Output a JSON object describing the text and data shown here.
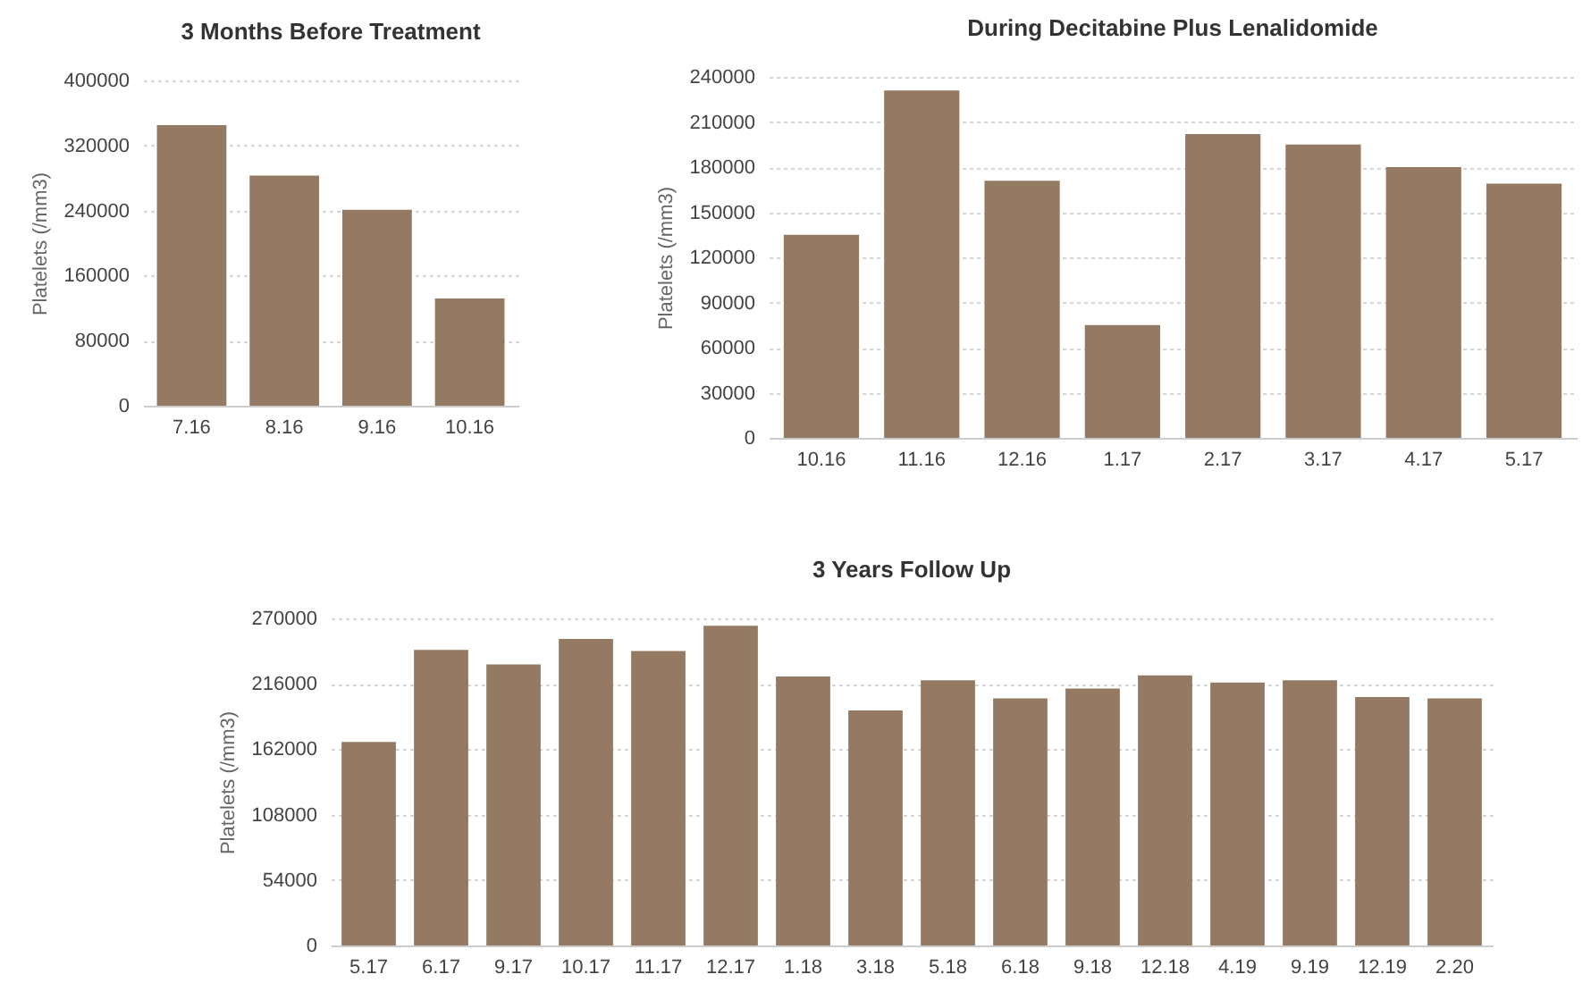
{
  "chart_data": [
    {
      "type": "bar",
      "title": "3 Months Before Treatment",
      "ylabel": "Platelets (/mm3)",
      "categories": [
        "7.16",
        "8.16",
        "9.16",
        "10.16"
      ],
      "values": [
        345000,
        283000,
        241000,
        132000
      ],
      "color": "#947a63",
      "ylim": [
        0,
        400000
      ],
      "yticks": [
        0,
        80000,
        160000,
        240000,
        320000,
        400000
      ],
      "grid": "y"
    },
    {
      "type": "bar",
      "title": "During Decitabine Plus Lenalidomide",
      "ylabel": "Platelets (/mm3)",
      "categories": [
        "10.16",
        "11.16",
        "12.16",
        "1.17",
        "2.17",
        "3.17",
        "4.17",
        "5.17"
      ],
      "values": [
        135000,
        231000,
        171000,
        75000,
        202000,
        195000,
        180000,
        169000
      ],
      "color": "#947a63",
      "ylim": [
        0,
        240000
      ],
      "yticks": [
        0,
        30000,
        60000,
        90000,
        120000,
        150000,
        180000,
        210000,
        240000
      ],
      "grid": "y"
    },
    {
      "type": "bar",
      "title": "3 Years Follow Up",
      "ylabel": "Platelets (/mm3)",
      "categories": [
        "5.17",
        "6.17",
        "9.17",
        "10.17",
        "11.17",
        "12.17",
        "1.18",
        "3.18",
        "5.18",
        "6.18",
        "9.18",
        "12.18",
        "4.19",
        "9.19",
        "12.19",
        "2.20"
      ],
      "values": [
        168000,
        244000,
        232000,
        253000,
        243000,
        264000,
        222000,
        194000,
        219000,
        204000,
        212000,
        223000,
        217000,
        219000,
        205000,
        204000
      ],
      "color": "#947a63",
      "ylim": [
        0,
        270000
      ],
      "yticks": [
        0,
        54000,
        108000,
        162000,
        216000,
        270000
      ],
      "grid": "y"
    }
  ]
}
